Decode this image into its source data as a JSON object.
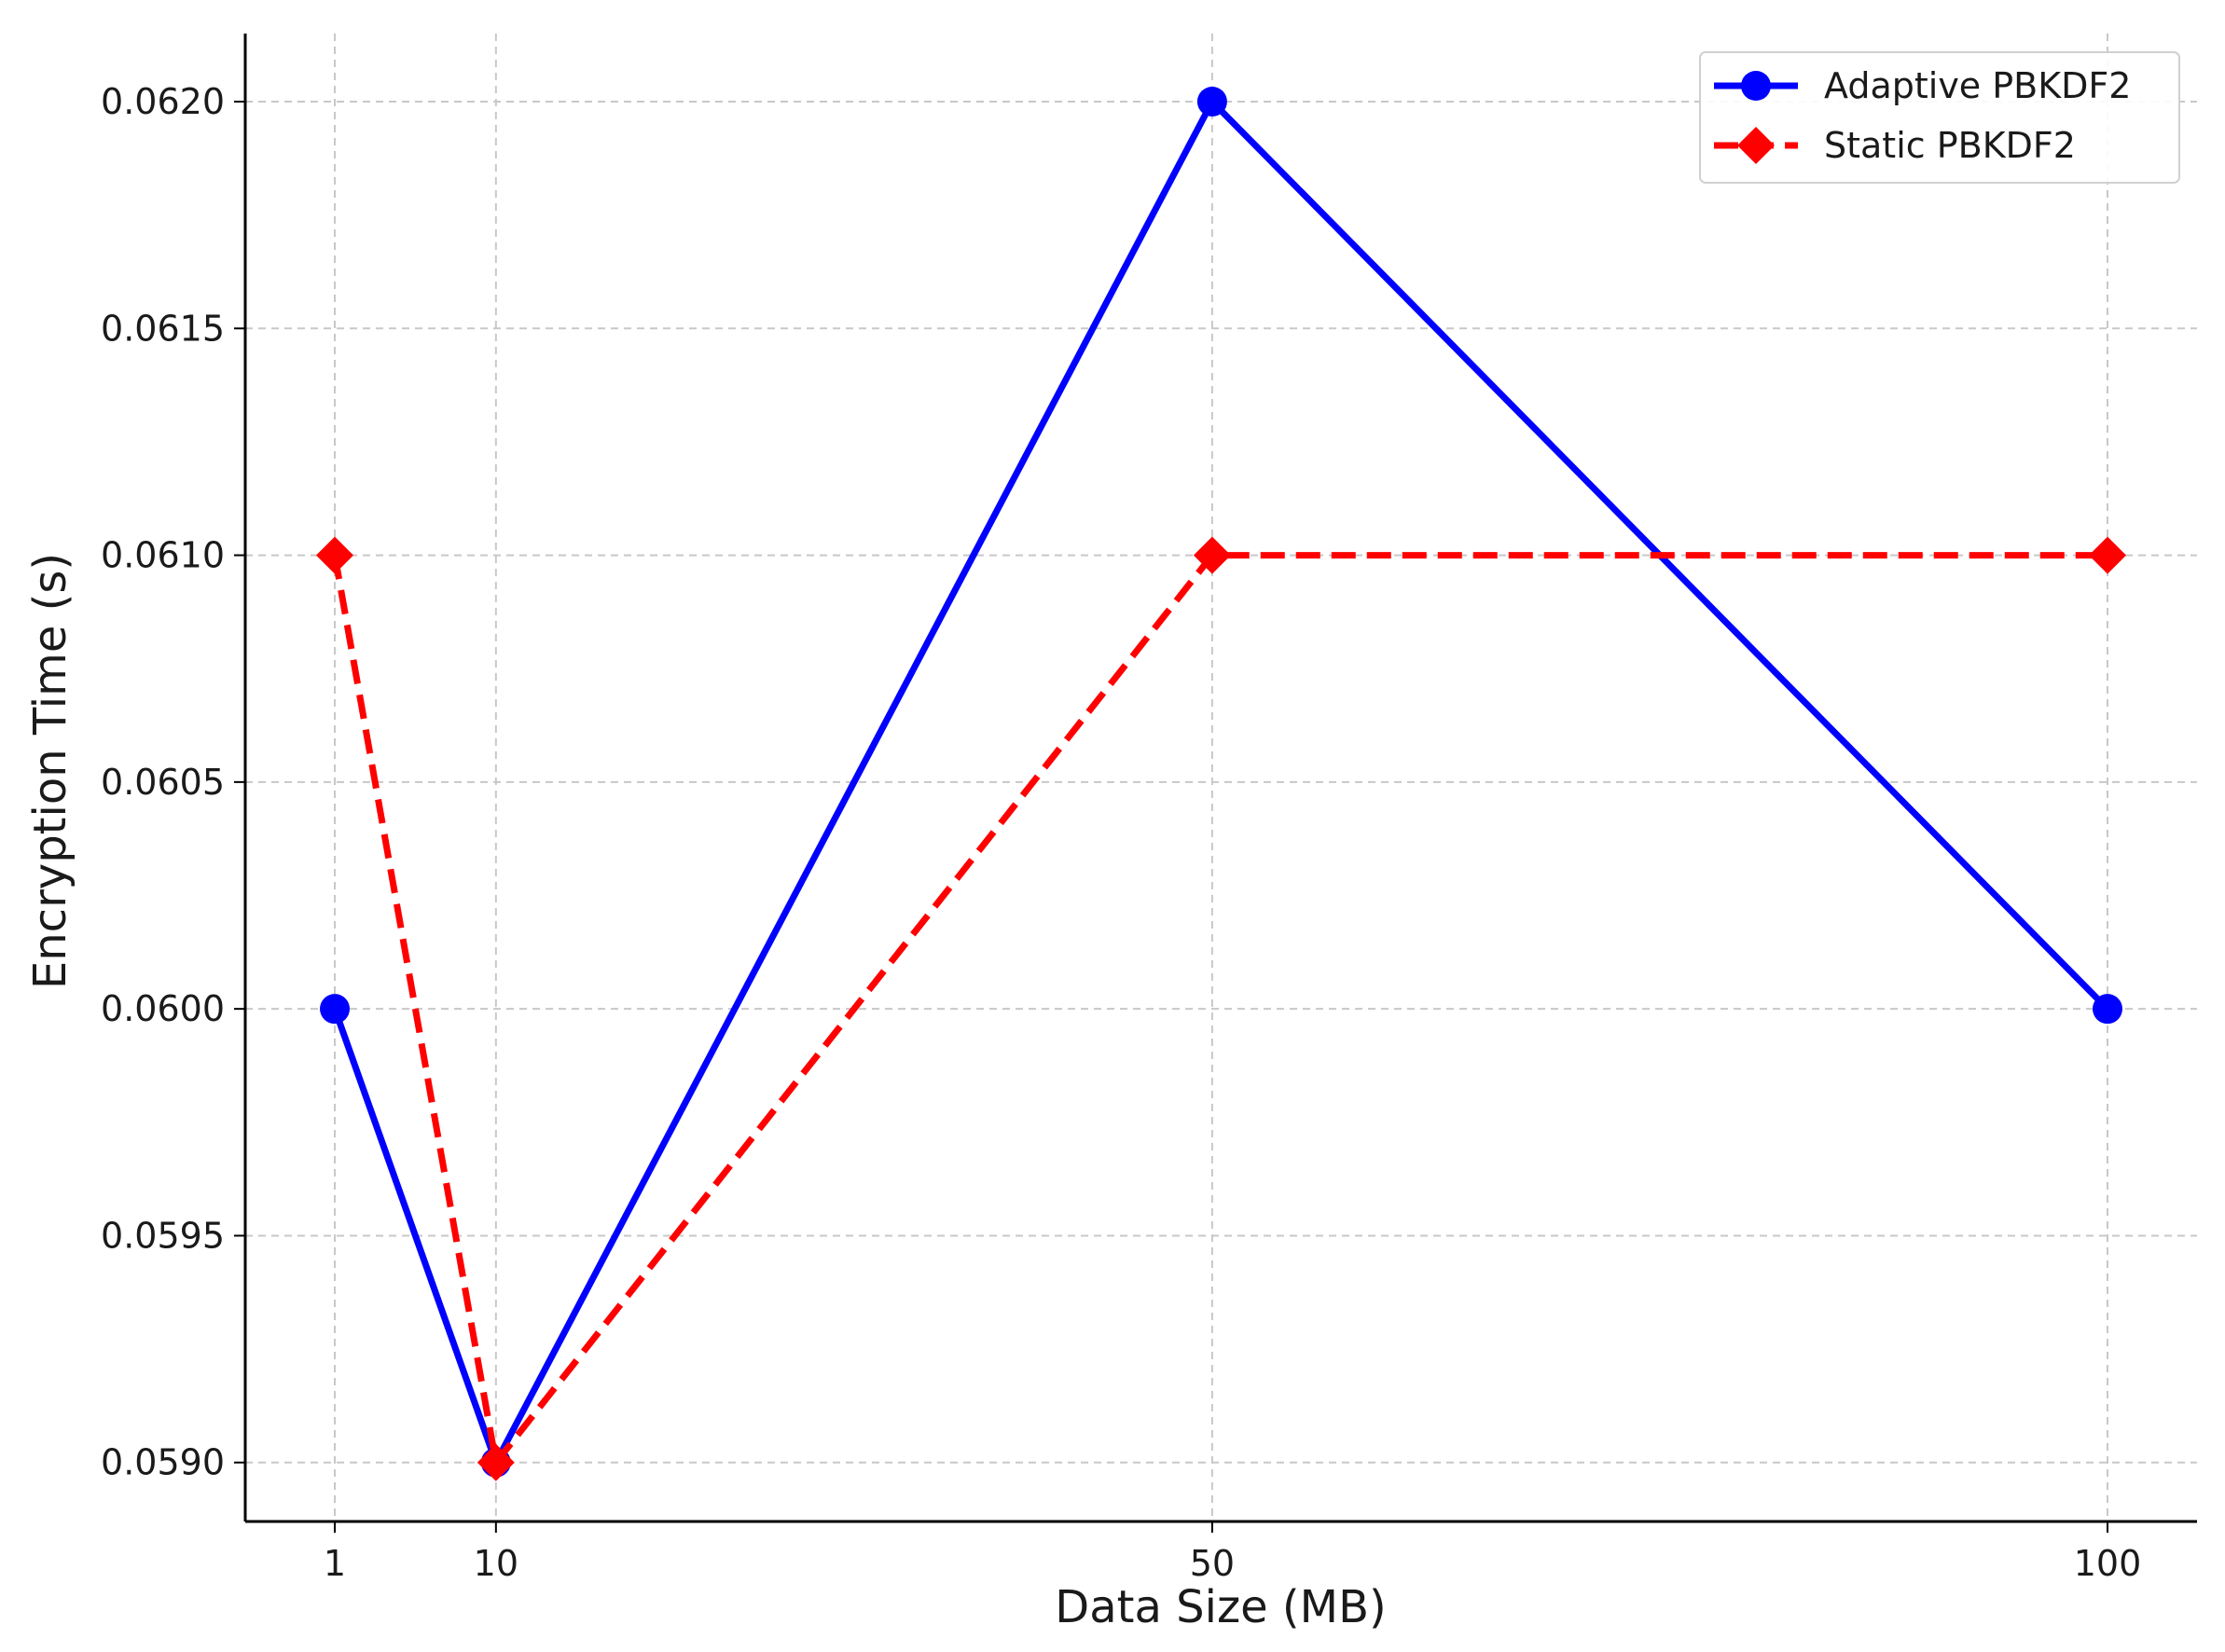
{
  "chart_data": {
    "type": "line",
    "title": "",
    "xlabel": "Data Size (MB)",
    "ylabel": "Encryption Time (s)",
    "x": [
      1,
      10,
      50,
      100
    ],
    "xticks": [
      "1",
      "10",
      "50",
      "100"
    ],
    "xlim": [
      -4,
      105
    ],
    "ylim": [
      0.05887,
      0.06215
    ],
    "yticks": [
      "0.0590",
      "0.0595",
      "0.0600",
      "0.0605",
      "0.0610",
      "0.0615",
      "0.0620"
    ],
    "ytick_values": [
      0.059,
      0.0595,
      0.06,
      0.0605,
      0.061,
      0.0615,
      0.062
    ],
    "grid": true,
    "legend_position": "top-right",
    "series": [
      {
        "name": "Adaptive PBKDF2",
        "values": [
          0.06,
          0.059,
          0.062,
          0.06
        ],
        "color": "#0000ff",
        "line_style": "solid",
        "marker": "circle"
      },
      {
        "name": "Static PBKDF2",
        "values": [
          0.061,
          0.059,
          0.061,
          0.061
        ],
        "color": "#ff0000",
        "line_style": "dashed",
        "marker": "diamond"
      }
    ]
  }
}
